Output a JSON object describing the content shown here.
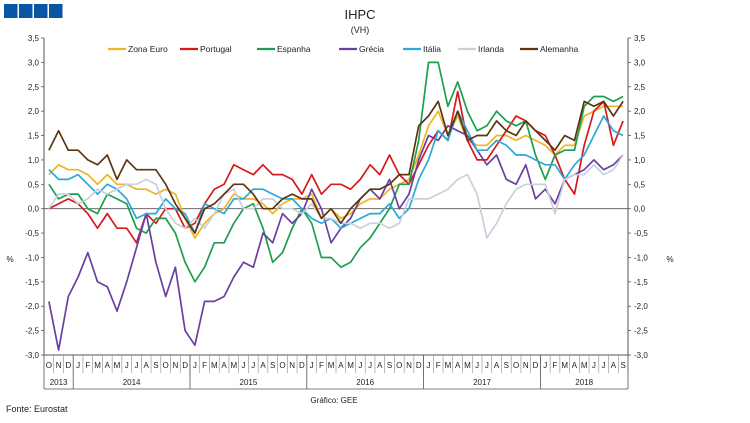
{
  "header_boxes": [
    "box-1",
    "box-2",
    "box-3",
    "box-4"
  ],
  "chart_data": {
    "type": "line",
    "title": "IHPC",
    "subtitle": "(VH)",
    "ylabel_left": "%",
    "ylabel_right": "%",
    "ylim": [
      -3.0,
      3.5
    ],
    "yticks": [
      "3,5",
      "3,0",
      "2,5",
      "2,0",
      "1,5",
      "1,0",
      "0,5",
      "0,0",
      "-0,5",
      "-1,0",
      "-1,5",
      "-2,0",
      "-2,5",
      "-3,0"
    ],
    "month_labels": [
      "O",
      "N",
      "D",
      "J",
      "F",
      "M",
      "A",
      "M",
      "J",
      "J",
      "A",
      "S",
      "O",
      "N",
      "D",
      "J",
      "F",
      "M",
      "A",
      "M",
      "J",
      "J",
      "A",
      "S",
      "O",
      "N",
      "D",
      "J",
      "F",
      "M",
      "A",
      "M",
      "J",
      "J",
      "A",
      "S",
      "O",
      "N",
      "D",
      "J",
      "F",
      "M",
      "A",
      "M",
      "J",
      "J",
      "A",
      "S",
      "O",
      "N",
      "D",
      "J",
      "F",
      "M",
      "A",
      "M",
      "J",
      "J",
      "A",
      "S"
    ],
    "years": [
      {
        "label": "2013",
        "start": 0,
        "count": 3
      },
      {
        "label": "2014",
        "start": 3,
        "count": 12
      },
      {
        "label": "2015",
        "start": 15,
        "count": 12
      },
      {
        "label": "2016",
        "start": 27,
        "count": 12
      },
      {
        "label": "2017",
        "start": 39,
        "count": 12
      },
      {
        "label": "2018",
        "start": 51,
        "count": 9
      }
    ],
    "series": [
      {
        "name": "Zona Euro",
        "color": "#f0b323",
        "values": [
          0.7,
          0.9,
          0.8,
          0.8,
          0.7,
          0.5,
          0.7,
          0.5,
          0.5,
          0.4,
          0.4,
          0.3,
          0.4,
          0.3,
          -0.2,
          -0.6,
          -0.3,
          -0.1,
          0.0,
          0.3,
          0.2,
          0.2,
          0.1,
          -0.1,
          0.1,
          0.2,
          0.2,
          0.3,
          -0.2,
          0.0,
          -0.2,
          -0.1,
          0.1,
          0.2,
          0.2,
          0.4,
          0.5,
          0.6,
          1.1,
          1.7,
          2.0,
          1.5,
          1.9,
          1.4,
          1.3,
          1.3,
          1.5,
          1.5,
          1.4,
          1.5,
          1.4,
          1.3,
          1.1,
          1.3,
          1.3,
          1.9,
          2.0,
          2.1,
          2.1,
          2.1
        ]
      },
      {
        "name": "Portugal",
        "color": "#d7191c",
        "values": [
          0.0,
          0.1,
          0.2,
          0.1,
          -0.1,
          -0.4,
          -0.1,
          -0.4,
          -0.4,
          -0.7,
          -0.1,
          -0.3,
          0.0,
          0.0,
          -0.4,
          -0.3,
          0.1,
          0.4,
          0.5,
          0.9,
          0.8,
          0.7,
          0.9,
          0.7,
          0.7,
          0.6,
          0.3,
          0.7,
          0.3,
          0.5,
          0.5,
          0.4,
          0.6,
          0.9,
          0.7,
          1.1,
          0.7,
          0.5,
          0.9,
          1.3,
          1.6,
          1.4,
          2.4,
          1.4,
          1.0,
          1.0,
          1.3,
          1.6,
          1.9,
          1.8,
          1.6,
          1.5,
          1.1,
          0.6,
          0.3,
          1.3,
          2.0,
          2.2,
          1.3,
          1.8
        ]
      },
      {
        "name": "Espanha",
        "color": "#1e9e4f",
        "values": [
          0.5,
          0.2,
          0.3,
          0.3,
          0.0,
          -0.1,
          0.3,
          0.2,
          0.1,
          -0.4,
          -0.5,
          -0.2,
          -0.2,
          -0.5,
          -1.1,
          -1.5,
          -1.2,
          -0.7,
          -0.7,
          -0.3,
          0.0,
          0.1,
          -0.4,
          -1.1,
          -0.9,
          -0.4,
          0.0,
          -0.3,
          -1.0,
          -1.0,
          -1.2,
          -1.1,
          -0.8,
          -0.6,
          -0.3,
          0.0,
          0.5,
          0.5,
          1.4,
          3.0,
          3.0,
          2.1,
          2.6,
          2.0,
          1.6,
          1.7,
          2.0,
          1.8,
          1.7,
          1.8,
          1.1,
          0.6,
          1.1,
          1.2,
          1.2,
          2.1,
          2.3,
          2.3,
          2.2,
          2.3
        ]
      },
      {
        "name": "Grécia",
        "color": "#6b3fa0",
        "values": [
          -1.9,
          -2.9,
          -1.8,
          -1.4,
          -0.9,
          -1.5,
          -1.6,
          -2.1,
          -1.5,
          -0.8,
          -0.1,
          -1.1,
          -1.8,
          -1.2,
          -2.5,
          -2.8,
          -1.9,
          -1.9,
          -1.8,
          -1.4,
          -1.1,
          -1.2,
          -0.5,
          -0.7,
          -0.1,
          -0.3,
          -0.1,
          0.4,
          0.0,
          -0.7,
          -0.4,
          -0.2,
          0.2,
          0.4,
          0.2,
          0.6,
          0.0,
          0.3,
          1.0,
          1.5,
          1.4,
          1.7,
          1.6,
          1.5,
          1.2,
          0.9,
          1.1,
          0.6,
          0.5,
          0.9,
          0.2,
          0.4,
          0.1,
          0.6,
          0.7,
          0.8,
          1.0,
          0.8,
          0.9,
          1.1
        ]
      },
      {
        "name": "Itália",
        "color": "#2aa9d9",
        "values": [
          0.8,
          0.6,
          0.6,
          0.7,
          0.5,
          0.3,
          0.5,
          0.4,
          0.2,
          -0.2,
          -0.1,
          -0.1,
          0.2,
          0.0,
          -0.1,
          -0.5,
          0.1,
          0.0,
          -0.1,
          0.2,
          0.2,
          0.4,
          0.4,
          0.3,
          0.2,
          0.2,
          0.0,
          -0.2,
          -0.3,
          -0.2,
          -0.4,
          -0.3,
          -0.2,
          -0.1,
          -0.1,
          0.1,
          -0.2,
          0.0,
          0.6,
          1.0,
          1.6,
          1.4,
          2.0,
          1.6,
          1.2,
          1.2,
          1.4,
          1.3,
          1.1,
          1.1,
          1.0,
          0.9,
          0.9,
          0.6,
          0.9,
          1.1,
          1.5,
          1.9,
          1.6,
          1.5
        ]
      },
      {
        "name": "Irlanda",
        "color": "#c8d0dc",
        "values": [
          0.0,
          0.3,
          0.3,
          0.1,
          0.2,
          0.4,
          0.3,
          0.4,
          0.5,
          0.5,
          0.6,
          0.5,
          0.0,
          -0.3,
          -0.4,
          -0.2,
          -0.4,
          -0.1,
          0.3,
          0.4,
          0.0,
          0.0,
          0.2,
          0.2,
          0.0,
          0.0,
          -0.1,
          0.1,
          -0.2,
          -0.2,
          -0.3,
          -0.3,
          -0.4,
          -0.3,
          -0.3,
          -0.4,
          -0.3,
          0.2,
          0.2,
          0.2,
          0.3,
          0.4,
          0.6,
          0.7,
          0.3,
          -0.6,
          -0.3,
          0.1,
          0.4,
          0.5,
          0.5,
          0.5,
          -0.1,
          0.6,
          0.7,
          0.7,
          0.9,
          0.7,
          0.8,
          1.1
        ]
      },
      {
        "name": "Alemanha",
        "color": "#5c3613",
        "values": [
          1.2,
          1.6,
          1.2,
          1.2,
          1.0,
          0.9,
          1.1,
          0.6,
          1.0,
          0.8,
          0.8,
          0.8,
          0.5,
          0.1,
          -0.2,
          -0.5,
          0.0,
          0.1,
          0.3,
          0.5,
          0.5,
          0.3,
          0.0,
          0.0,
          0.2,
          0.3,
          0.2,
          0.2,
          -0.2,
          0.0,
          -0.3,
          0.0,
          0.2,
          0.4,
          0.4,
          0.5,
          0.7,
          0.7,
          1.7,
          1.9,
          2.2,
          1.5,
          2.0,
          1.4,
          1.5,
          1.5,
          1.8,
          1.6,
          1.5,
          1.8,
          1.6,
          1.4,
          1.2,
          1.5,
          1.4,
          2.2,
          2.1,
          2.2,
          1.9,
          2.2
        ]
      }
    ]
  },
  "footer": {
    "source": "Fonte: Eurostat",
    "caption": "Gráfico: GEE"
  }
}
